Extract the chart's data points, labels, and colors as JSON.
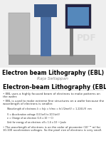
{
  "title_main": "Electron beam Lithography (EBL)",
  "subtitle": "Raja Sellappan",
  "section_title": "Electron-beam Lithography (EBL)",
  "bullet1_pre": "EBL uses a ",
  "bullet1_bold": "highly focused beam of electrons",
  "bullet1_post": " to make patterns on the wafer.",
  "bullet2_pre": "EBL is used to make extreme fine structures on a wafer because the ",
  "bullet2_bold": "wavelength of electrons is smaller",
  "bullet2_post": ".",
  "wavelength_eq": "Wavelength of electrons λ = h/p = h/mv = h/√(2meV) = 1.226/√V  nm",
  "param1": "V = Acceleration voltage (3.0 keV to 100 keV)",
  "param2": "e = Charge of an electron (1.6 x 10⁻¹⁹ C)",
  "param3": "Unit for energy of an electron: eV= 1.6 x 10⁻¹⁹ Joule",
  "bullet3": "The wavelength of electrons is on the order of picometer (10⁻¹² m) for 10-100 acceleration voltages. So the pixel size of electrons is very small.",
  "bg_color": "#ffffff",
  "top_bg": "#eeeeee",
  "title_color": "#000000",
  "subtitle_color": "#888888",
  "bullet_color": "#333333",
  "section_title_color": "#000000",
  "line_color": "#cccccc"
}
